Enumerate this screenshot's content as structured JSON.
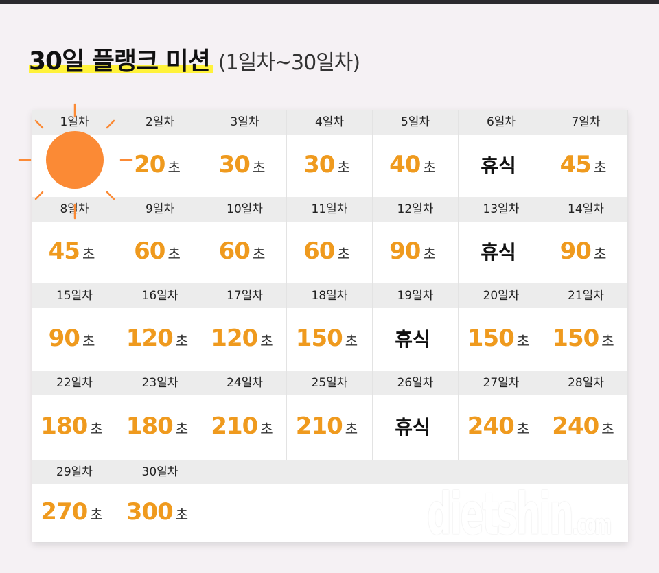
{
  "title": {
    "main": "30일 플랭크 미션",
    "sub": "(1일차~30일차)"
  },
  "unit_label": "초",
  "rest_label": "휴식",
  "colors": {
    "value": "#ef9a1e",
    "highlight": "#fff23a",
    "header_bg": "#ececec",
    "sun": "#fb8a35"
  },
  "days": [
    {
      "label": "1일차",
      "value": ""
    },
    {
      "label": "2일차",
      "value": "20"
    },
    {
      "label": "3일차",
      "value": "30"
    },
    {
      "label": "4일차",
      "value": "30"
    },
    {
      "label": "5일차",
      "value": "40"
    },
    {
      "label": "6일차",
      "rest": true
    },
    {
      "label": "7일차",
      "value": "45"
    },
    {
      "label": "8일차",
      "value": "45"
    },
    {
      "label": "9일차",
      "value": "60"
    },
    {
      "label": "10일차",
      "value": "60"
    },
    {
      "label": "11일차",
      "value": "60"
    },
    {
      "label": "12일차",
      "value": "90"
    },
    {
      "label": "13일차",
      "rest": true
    },
    {
      "label": "14일차",
      "value": "90"
    },
    {
      "label": "15일차",
      "value": "90"
    },
    {
      "label": "16일차",
      "value": "120"
    },
    {
      "label": "17일차",
      "value": "120"
    },
    {
      "label": "18일차",
      "value": "150"
    },
    {
      "label": "19일차",
      "rest": true
    },
    {
      "label": "20일차",
      "value": "150"
    },
    {
      "label": "21일차",
      "value": "150"
    },
    {
      "label": "22일차",
      "value": "180"
    },
    {
      "label": "23일차",
      "value": "180"
    },
    {
      "label": "24일차",
      "value": "210"
    },
    {
      "label": "25일차",
      "value": "210"
    },
    {
      "label": "26일차",
      "rest": true
    },
    {
      "label": "27일차",
      "value": "240"
    },
    {
      "label": "28일차",
      "value": "240"
    },
    {
      "label": "29일차",
      "value": "270"
    },
    {
      "label": "30일차",
      "value": "300"
    }
  ],
  "watermark": {
    "main": "dietshin",
    "suffix": ".com"
  }
}
